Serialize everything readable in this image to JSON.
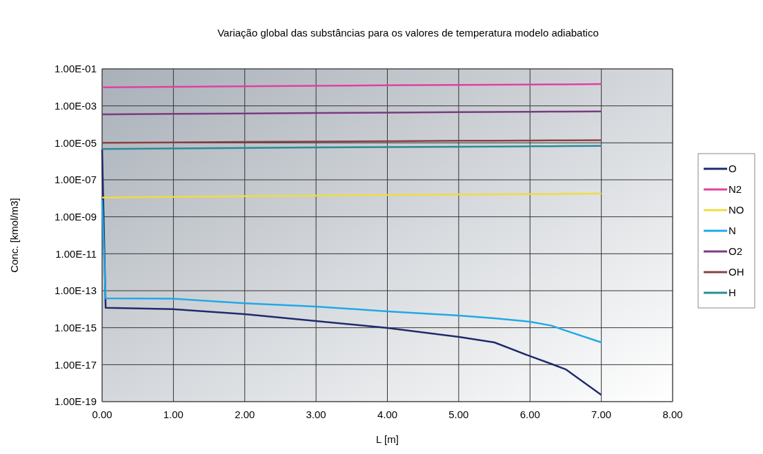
{
  "chart_data": {
    "type": "line",
    "title": "Variação global das substâncias para os valores de temperatura modelo adiabatico",
    "xlabel": "L [m]",
    "ylabel": "Conc. [kmol/m3]",
    "log": "y",
    "grid": true,
    "legend": "right",
    "line_style": "solid",
    "marker": "none",
    "x": [
      0,
      0.05,
      1,
      2,
      3,
      4,
      5,
      5.5,
      6,
      6.3,
      6.5,
      7
    ],
    "xlim": [
      0,
      8
    ],
    "xticks": [
      {
        "value": 0,
        "label": "0.00"
      },
      {
        "value": 1,
        "label": "1.00"
      },
      {
        "value": 2,
        "label": "2.00"
      },
      {
        "value": 3,
        "label": "3.00"
      },
      {
        "value": 4,
        "label": "4.00"
      },
      {
        "value": 5,
        "label": "5.00"
      },
      {
        "value": 6,
        "label": "6.00"
      },
      {
        "value": 7,
        "label": "7.00"
      },
      {
        "value": 8,
        "label": "8.00"
      }
    ],
    "ylim": [
      1e-19,
      0.1
    ],
    "yticks": [
      {
        "value": 1e-19,
        "label": "1.00E-19"
      },
      {
        "value": 1e-17,
        "label": "1.00E-17"
      },
      {
        "value": 1e-15,
        "label": "1.00E-15"
      },
      {
        "value": 1e-13,
        "label": "1.00E-13"
      },
      {
        "value": 1e-11,
        "label": "1.00E-11"
      },
      {
        "value": 1e-09,
        "label": "1.00E-09"
      },
      {
        "value": 1e-07,
        "label": "1.00E-07"
      },
      {
        "value": 1e-05,
        "label": "1.00E-05"
      },
      {
        "value": 0.001,
        "label": "1.00E-03"
      },
      {
        "value": 0.1,
        "label": "1.00E-01"
      }
    ],
    "series": [
      {
        "name": "O",
        "color": "#1f2a6b",
        "values": [
          4.4e-06,
          1.2e-14,
          1e-14,
          5.4e-15,
          2.3e-15,
          9.8e-16,
          3.2e-16,
          1.6e-16,
          2.9e-17,
          1.1e-17,
          5.6e-18,
          2.3e-19
        ]
      },
      {
        "name": "N2",
        "color": "#e040a0",
        "values": [
          0.01,
          0.01,
          0.0107,
          0.0114,
          0.0121,
          0.0129,
          0.0136,
          0.0139,
          0.0143,
          0.0145,
          0.0146,
          0.015
        ]
      },
      {
        "name": "NO",
        "color": "#f0dc40",
        "values": [
          1.1e-08,
          1.1e-08,
          1.2e-08,
          1.3e-08,
          1.4e-08,
          1.5e-08,
          1.6e-08,
          1.65e-08,
          1.7e-08,
          1.7e-08,
          1.75e-08,
          1.8e-08
        ]
      },
      {
        "name": "N",
        "color": "#20a8e8",
        "values": [
          8e-09,
          3.9e-14,
          3.7e-14,
          2.1e-14,
          1.4e-14,
          7.6e-15,
          4.6e-15,
          3.2e-15,
          2.1e-15,
          1.3e-15,
          7e-16,
          1.6e-16
        ]
      },
      {
        "name": "O2",
        "color": "#7a3a80",
        "values": [
          0.00035,
          0.00035,
          0.00037,
          0.00039,
          0.00041,
          0.00043,
          0.00046,
          0.00047,
          0.00048,
          0.00049,
          0.00049,
          0.0005
        ]
      },
      {
        "name": "OH",
        "color": "#8a4040",
        "values": [
          1e-05,
          1e-05,
          1.06e-05,
          1.11e-05,
          1.17e-05,
          1.23e-05,
          1.29e-05,
          1.31e-05,
          1.34e-05,
          1.36e-05,
          1.37e-05,
          1.4e-05
        ]
      },
      {
        "name": "H",
        "color": "#2a8a98",
        "values": [
          4.7e-06,
          4.7e-06,
          5e-06,
          5.3e-06,
          5.6e-06,
          5.9e-06,
          6.2e-06,
          6.35e-06,
          6.5e-06,
          6.6e-06,
          6.65e-06,
          6.8e-06
        ]
      }
    ]
  }
}
